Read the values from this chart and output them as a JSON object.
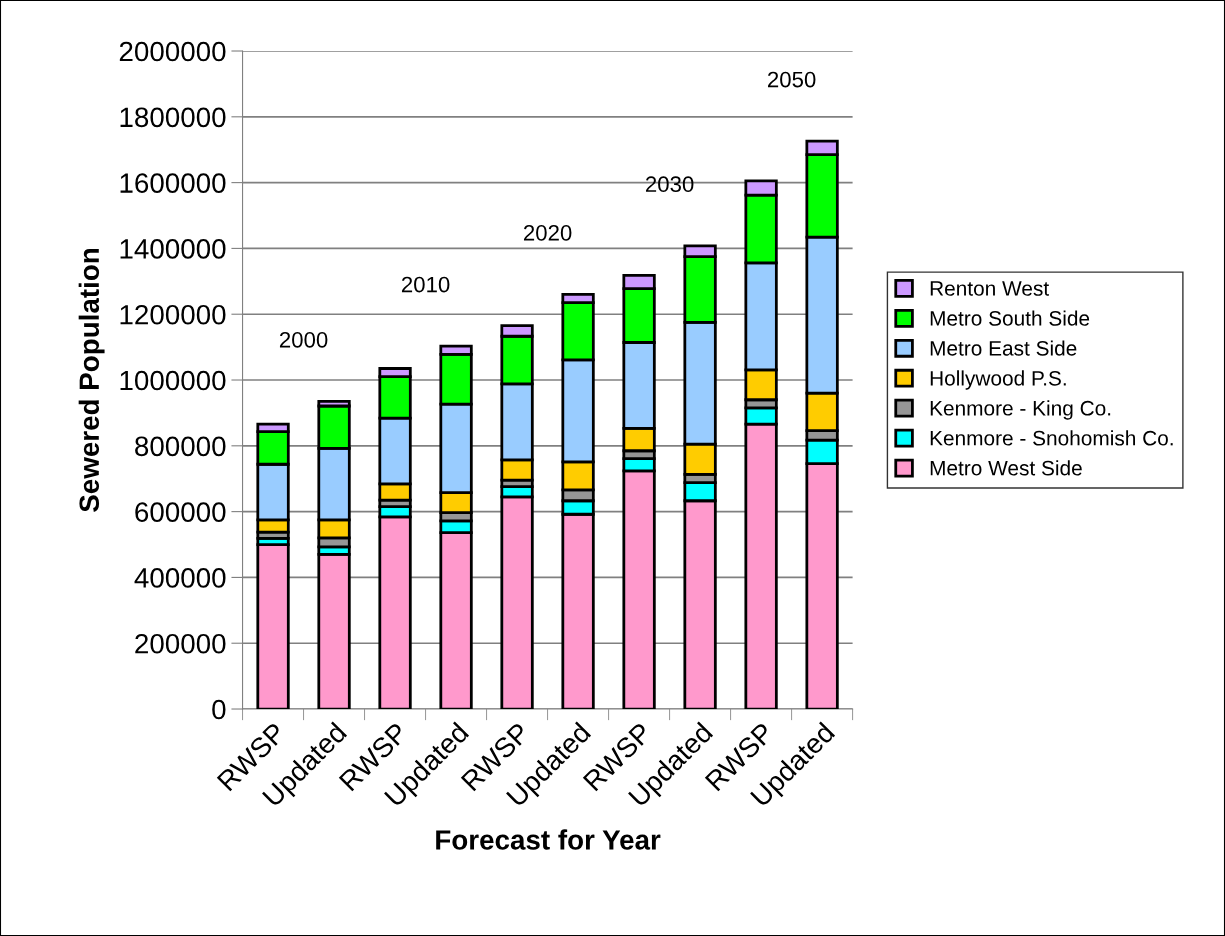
{
  "chart_data": {
    "type": "bar",
    "stacked": true,
    "xlabel": "Forecast for Year",
    "ylabel": "Sewered Population",
    "categories": [
      "RWSP",
      "Updated",
      "RWSP",
      "Updated",
      "RWSP",
      "Updated",
      "RWSP",
      "Updated",
      "RWSP",
      "Updated"
    ],
    "series": [
      {
        "name": "Metro West Side",
        "color": "#ff99cc",
        "values": [
          500000,
          470000,
          584000,
          536000,
          645000,
          592000,
          724000,
          633000,
          866000,
          746000
        ]
      },
      {
        "name": "Kenmore - Snohomish Co.",
        "color": "#00ffff",
        "values": [
          19000,
          23000,
          31000,
          36000,
          31000,
          41000,
          37000,
          55000,
          49000,
          71000
        ]
      },
      {
        "name": "Kenmore - King Co.",
        "color": "#969696",
        "values": [
          19000,
          27000,
          20000,
          25000,
          20000,
          33000,
          24000,
          25000,
          25000,
          29000
        ]
      },
      {
        "name": "Hollywood P.S.",
        "color": "#ffcc00",
        "values": [
          37000,
          55000,
          49000,
          61000,
          61000,
          85000,
          68000,
          92000,
          91000,
          114000
        ]
      },
      {
        "name": "Metro East Side",
        "color": "#99ccff",
        "values": [
          169000,
          217000,
          200000,
          269000,
          231000,
          310000,
          261000,
          370000,
          325000,
          474000
        ]
      },
      {
        "name": "Metro South Side",
        "color": "#00ff00",
        "values": [
          99000,
          129000,
          126000,
          151000,
          145000,
          174000,
          164000,
          200000,
          206000,
          251000
        ]
      },
      {
        "name": "Renton West",
        "color": "#cc99ff",
        "values": [
          23000,
          14000,
          25000,
          25000,
          32000,
          25000,
          40000,
          33000,
          43000,
          41000
        ]
      }
    ],
    "annotations": [
      "2000",
      "2010",
      "2020",
      "2030",
      "2050"
    ],
    "ylim": [
      0,
      2000000
    ],
    "yticks": [
      0,
      200000,
      400000,
      600000,
      800000,
      1000000,
      1200000,
      1400000,
      1600000,
      1800000,
      2000000
    ],
    "grid": "y",
    "legend": "right"
  }
}
